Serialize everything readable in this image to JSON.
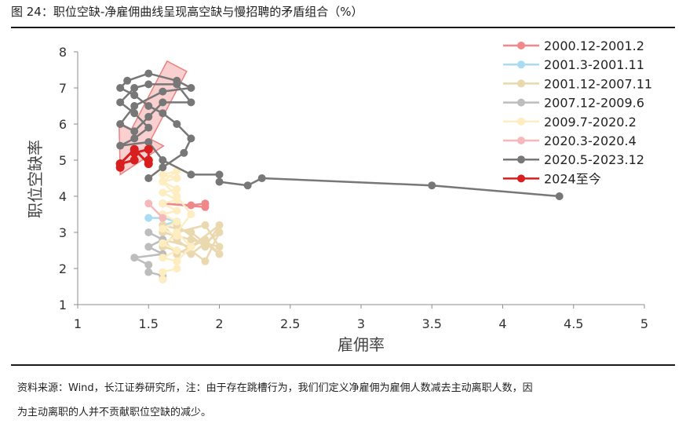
{
  "title": "图 24：职位空缺-净雇佣曲线呈现高空缺与慢招聘的矛盾组合（%）",
  "source_line1": "资料来源：Wind，长江证券研究所，注：由于存在跳槽行为，我们们定义净雇佣为雇佣人数减去主动离职人数，因",
  "source_line2": "为主动离职的人并不贡献职位空缺的减少。",
  "chart_data": {
    "type": "line",
    "xlabel": "雇佣率",
    "ylabel": "职位空缺率",
    "xlim": [
      1,
      5
    ],
    "ylim": [
      1,
      8
    ],
    "xticks": [
      "1",
      "1.5",
      "2",
      "2.5",
      "3",
      "3.5",
      "4",
      "4.5",
      "5"
    ],
    "yticks": [
      "1",
      "2",
      "3",
      "4",
      "5",
      "6",
      "7",
      "8"
    ],
    "grid": false,
    "legend_position": "right",
    "arrow_color": "#ef8080",
    "series": [
      {
        "name": "2000.12-2001.2",
        "color": "#f0878a",
        "points": [
          [
            1.9,
            3.8
          ],
          [
            1.8,
            3.75
          ],
          [
            1.6,
            3.8
          ],
          [
            1.9,
            3.7
          ]
        ]
      },
      {
        "name": "2001.3-2001.11",
        "color": "#a9dcf3",
        "points": [
          [
            1.5,
            3.4
          ],
          [
            1.6,
            3.4
          ],
          [
            1.7,
            3.3
          ],
          [
            1.6,
            3.2
          ]
        ]
      },
      {
        "name": "2001.12-2007.11",
        "color": "#ead8ae",
        "points": [
          [
            1.6,
            3.0
          ],
          [
            1.8,
            2.8
          ],
          [
            2.0,
            2.6
          ],
          [
            1.9,
            3.2
          ],
          [
            1.7,
            3.0
          ],
          [
            1.6,
            2.6
          ],
          [
            1.8,
            2.4
          ],
          [
            2.0,
            3.0
          ],
          [
            1.9,
            2.2
          ],
          [
            1.7,
            2.8
          ],
          [
            1.6,
            3.2
          ],
          [
            1.8,
            3.0
          ],
          [
            2.0,
            2.4
          ],
          [
            1.9,
            2.8
          ],
          [
            1.7,
            2.4
          ],
          [
            1.6,
            2.8
          ],
          [
            1.8,
            2.6
          ],
          [
            2.0,
            3.2
          ],
          [
            1.9,
            2.6
          ],
          [
            1.7,
            3.2
          ]
        ]
      },
      {
        "name": "2007.12-2009.6",
        "color": "#bdbdbd",
        "points": [
          [
            1.5,
            3.0
          ],
          [
            1.6,
            2.8
          ],
          [
            1.5,
            2.6
          ],
          [
            1.6,
            2.4
          ],
          [
            1.4,
            2.3
          ],
          [
            1.5,
            2.1
          ],
          [
            1.5,
            1.9
          ],
          [
            1.6,
            1.8
          ],
          [
            1.6,
            1.7
          ]
        ]
      },
      {
        "name": "2009.7-2020.2",
        "color": "#fdedc0",
        "points": [
          [
            1.6,
            1.7
          ],
          [
            1.6,
            1.9
          ],
          [
            1.7,
            2.0
          ],
          [
            1.7,
            2.2
          ],
          [
            1.6,
            2.3
          ],
          [
            1.7,
            2.5
          ],
          [
            1.6,
            2.7
          ],
          [
            1.7,
            2.9
          ],
          [
            1.6,
            3.1
          ],
          [
            1.7,
            3.3
          ],
          [
            1.6,
            3.5
          ],
          [
            1.7,
            3.6
          ],
          [
            1.6,
            3.8
          ],
          [
            1.7,
            3.9
          ],
          [
            1.6,
            4.1
          ],
          [
            1.7,
            4.2
          ],
          [
            1.6,
            4.4
          ],
          [
            1.7,
            4.5
          ],
          [
            1.6,
            4.6
          ],
          [
            1.7,
            4.7
          ],
          [
            1.6,
            4.4
          ],
          [
            1.7,
            4.0
          ],
          [
            1.8,
            3.5
          ],
          [
            1.7,
            3.0
          ],
          [
            1.8,
            2.6
          ],
          [
            1.7,
            2.2
          ]
        ]
      },
      {
        "name": "2020.3-2020.4",
        "color": "#f6b9bb",
        "points": [
          [
            1.5,
            3.8
          ],
          [
            1.6,
            3.4
          ]
        ]
      },
      {
        "name": "2020.5-2023.12",
        "color": "#777777",
        "points": [
          [
            1.5,
            4.5
          ],
          [
            1.6,
            4.8
          ],
          [
            1.75,
            5.2
          ],
          [
            1.8,
            5.6
          ],
          [
            1.7,
            6.0
          ],
          [
            1.6,
            6.3
          ],
          [
            1.5,
            6.5
          ],
          [
            1.4,
            6.8
          ],
          [
            1.3,
            7.0
          ],
          [
            1.35,
            7.2
          ],
          [
            1.5,
            7.4
          ],
          [
            1.7,
            7.2
          ],
          [
            1.8,
            7.0
          ],
          [
            1.6,
            6.9
          ],
          [
            1.4,
            6.5
          ],
          [
            1.3,
            6.0
          ],
          [
            1.4,
            5.8
          ],
          [
            1.5,
            6.2
          ],
          [
            1.6,
            6.6
          ],
          [
            1.8,
            6.6
          ],
          [
            1.7,
            7.1
          ],
          [
            1.5,
            7.1
          ],
          [
            1.4,
            7.0
          ],
          [
            1.3,
            6.6
          ],
          [
            1.4,
            6.3
          ],
          [
            1.5,
            5.9
          ],
          [
            1.4,
            5.6
          ],
          [
            1.3,
            5.4
          ],
          [
            1.5,
            5.5
          ],
          [
            1.6,
            5.0
          ],
          [
            1.8,
            4.6
          ],
          [
            2.0,
            4.6
          ],
          [
            2.0,
            4.4
          ],
          [
            2.2,
            4.3
          ],
          [
            2.3,
            4.5
          ],
          [
            3.5,
            4.3
          ],
          [
            4.4,
            4.0
          ]
        ]
      },
      {
        "name": "2024至今",
        "color": "#d81e1e",
        "points": [
          [
            1.3,
            4.8
          ],
          [
            1.3,
            4.9
          ],
          [
            1.4,
            5.0
          ],
          [
            1.4,
            5.2
          ],
          [
            1.5,
            5.3
          ],
          [
            1.5,
            5.0
          ],
          [
            1.5,
            4.9
          ],
          [
            1.4,
            5.3
          ],
          [
            1.3,
            4.9
          ]
        ]
      }
    ]
  }
}
